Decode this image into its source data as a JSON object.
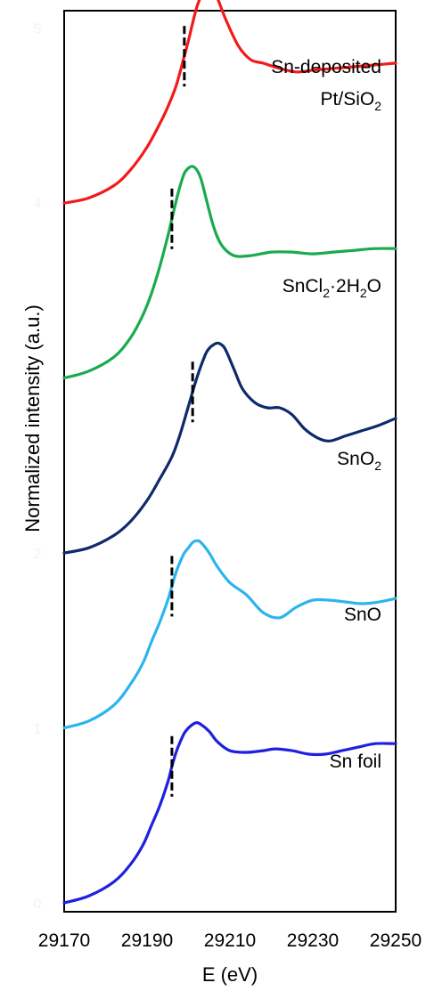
{
  "chart_data": {
    "type": "line",
    "title": "",
    "xlabel": "E (eV)",
    "ylabel": "Normalized intensity (a.u.)",
    "xlim": [
      29170,
      29250
    ],
    "ylim": [
      0,
      5.1
    ],
    "x_ticks": [
      "29170",
      "29190",
      "29210",
      "29230",
      "29250"
    ],
    "y_ticks_faint": [
      "0",
      "1",
      "2",
      "3",
      "4",
      "5"
    ],
    "grid": false,
    "legend": "none (series labelled directly on the plot)",
    "series": [
      {
        "name": "Sn foil",
        "color": "#1f1fe0",
        "offset": 0.0,
        "edge_marker_x": 29196,
        "x": [
          29170,
          29176,
          29182,
          29186,
          29189,
          29191,
          29193,
          29195,
          29196,
          29197,
          29198,
          29199,
          29200,
          29201,
          29202,
          29203,
          29205,
          29207,
          29210,
          29214,
          29218,
          29221,
          29225,
          29229,
          29233,
          29237,
          29241,
          29245,
          29250
        ],
        "y": [
          0.0,
          0.04,
          0.12,
          0.22,
          0.33,
          0.44,
          0.55,
          0.69,
          0.78,
          0.86,
          0.92,
          0.97,
          1.0,
          1.02,
          1.03,
          1.02,
          0.98,
          0.92,
          0.87,
          0.86,
          0.87,
          0.88,
          0.87,
          0.85,
          0.85,
          0.87,
          0.89,
          0.91,
          0.91
        ]
      },
      {
        "name": "SnO",
        "color": "#2ab5ee",
        "offset": 1.0,
        "edge_marker_x": 29196,
        "x": [
          29170,
          29176,
          29182,
          29186,
          29189,
          29191,
          29193,
          29195,
          29196,
          29197,
          29198,
          29199,
          29200,
          29201,
          29202,
          29203,
          29205,
          29207,
          29210,
          29214,
          29218,
          29222,
          29226,
          29230,
          29234,
          29238,
          29242,
          29246,
          29250
        ],
        "y": [
          0.0,
          0.04,
          0.13,
          0.25,
          0.37,
          0.49,
          0.6,
          0.73,
          0.81,
          0.89,
          0.95,
          1.0,
          1.03,
          1.06,
          1.07,
          1.06,
          1.0,
          0.92,
          0.83,
          0.76,
          0.66,
          0.63,
          0.69,
          0.73,
          0.73,
          0.72,
          0.71,
          0.72,
          0.74
        ]
      },
      {
        "name": "SnO₂",
        "color": "#0d2a6b",
        "offset": 2.0,
        "edge_marker_x": 29201,
        "x": [
          29170,
          29176,
          29182,
          29186,
          29190,
          29193,
          29196,
          29198,
          29200,
          29202,
          29204,
          29205,
          29206,
          29207,
          29208,
          29209,
          29211,
          29213,
          29216,
          29219,
          29222,
          29225,
          29228,
          29231,
          29234,
          29238,
          29242,
          29246,
          29250
        ],
        "y": [
          0.0,
          0.03,
          0.1,
          0.18,
          0.3,
          0.42,
          0.55,
          0.68,
          0.84,
          1.0,
          1.13,
          1.17,
          1.19,
          1.2,
          1.19,
          1.16,
          1.05,
          0.94,
          0.86,
          0.83,
          0.83,
          0.79,
          0.71,
          0.66,
          0.64,
          0.67,
          0.7,
          0.73,
          0.77
        ]
      },
      {
        "name": "SnCl₂·2H₂O",
        "color": "#1aaa4f",
        "offset": 3.0,
        "edge_marker_x": 29196,
        "x": [
          29170,
          29176,
          29182,
          29186,
          29189,
          29191,
          29193,
          29195,
          29196,
          29197,
          29198,
          29199,
          29200,
          29201,
          29202,
          29203,
          29204,
          29206,
          29208,
          29211,
          29215,
          29220,
          29225,
          29230,
          29235,
          29240,
          29245,
          29250
        ],
        "y": [
          0.0,
          0.04,
          0.12,
          0.23,
          0.36,
          0.48,
          0.63,
          0.81,
          0.91,
          1.01,
          1.1,
          1.17,
          1.2,
          1.21,
          1.19,
          1.14,
          1.05,
          0.87,
          0.76,
          0.7,
          0.7,
          0.72,
          0.72,
          0.71,
          0.72,
          0.73,
          0.74,
          0.74
        ]
      },
      {
        "name": "Sn-deposited Pt/SiO₂",
        "color": "#f21a1a",
        "offset": 4.0,
        "edge_marker_x": 29199,
        "x": [
          29170,
          29176,
          29182,
          29186,
          29190,
          29193,
          29195,
          29197,
          29199,
          29200,
          29201,
          29202,
          29203,
          29204,
          29205,
          29206,
          29207,
          29209,
          29212,
          29215,
          29218,
          29222,
          29226,
          29230,
          29235,
          29240,
          29245,
          29250
        ],
        "y": [
          0.0,
          0.03,
          0.1,
          0.19,
          0.32,
          0.45,
          0.55,
          0.67,
          0.84,
          0.93,
          1.03,
          1.12,
          1.18,
          1.21,
          1.22,
          1.21,
          1.17,
          1.05,
          0.9,
          0.82,
          0.8,
          0.77,
          0.75,
          0.76,
          0.77,
          0.78,
          0.79,
          0.8
        ]
      }
    ]
  }
}
